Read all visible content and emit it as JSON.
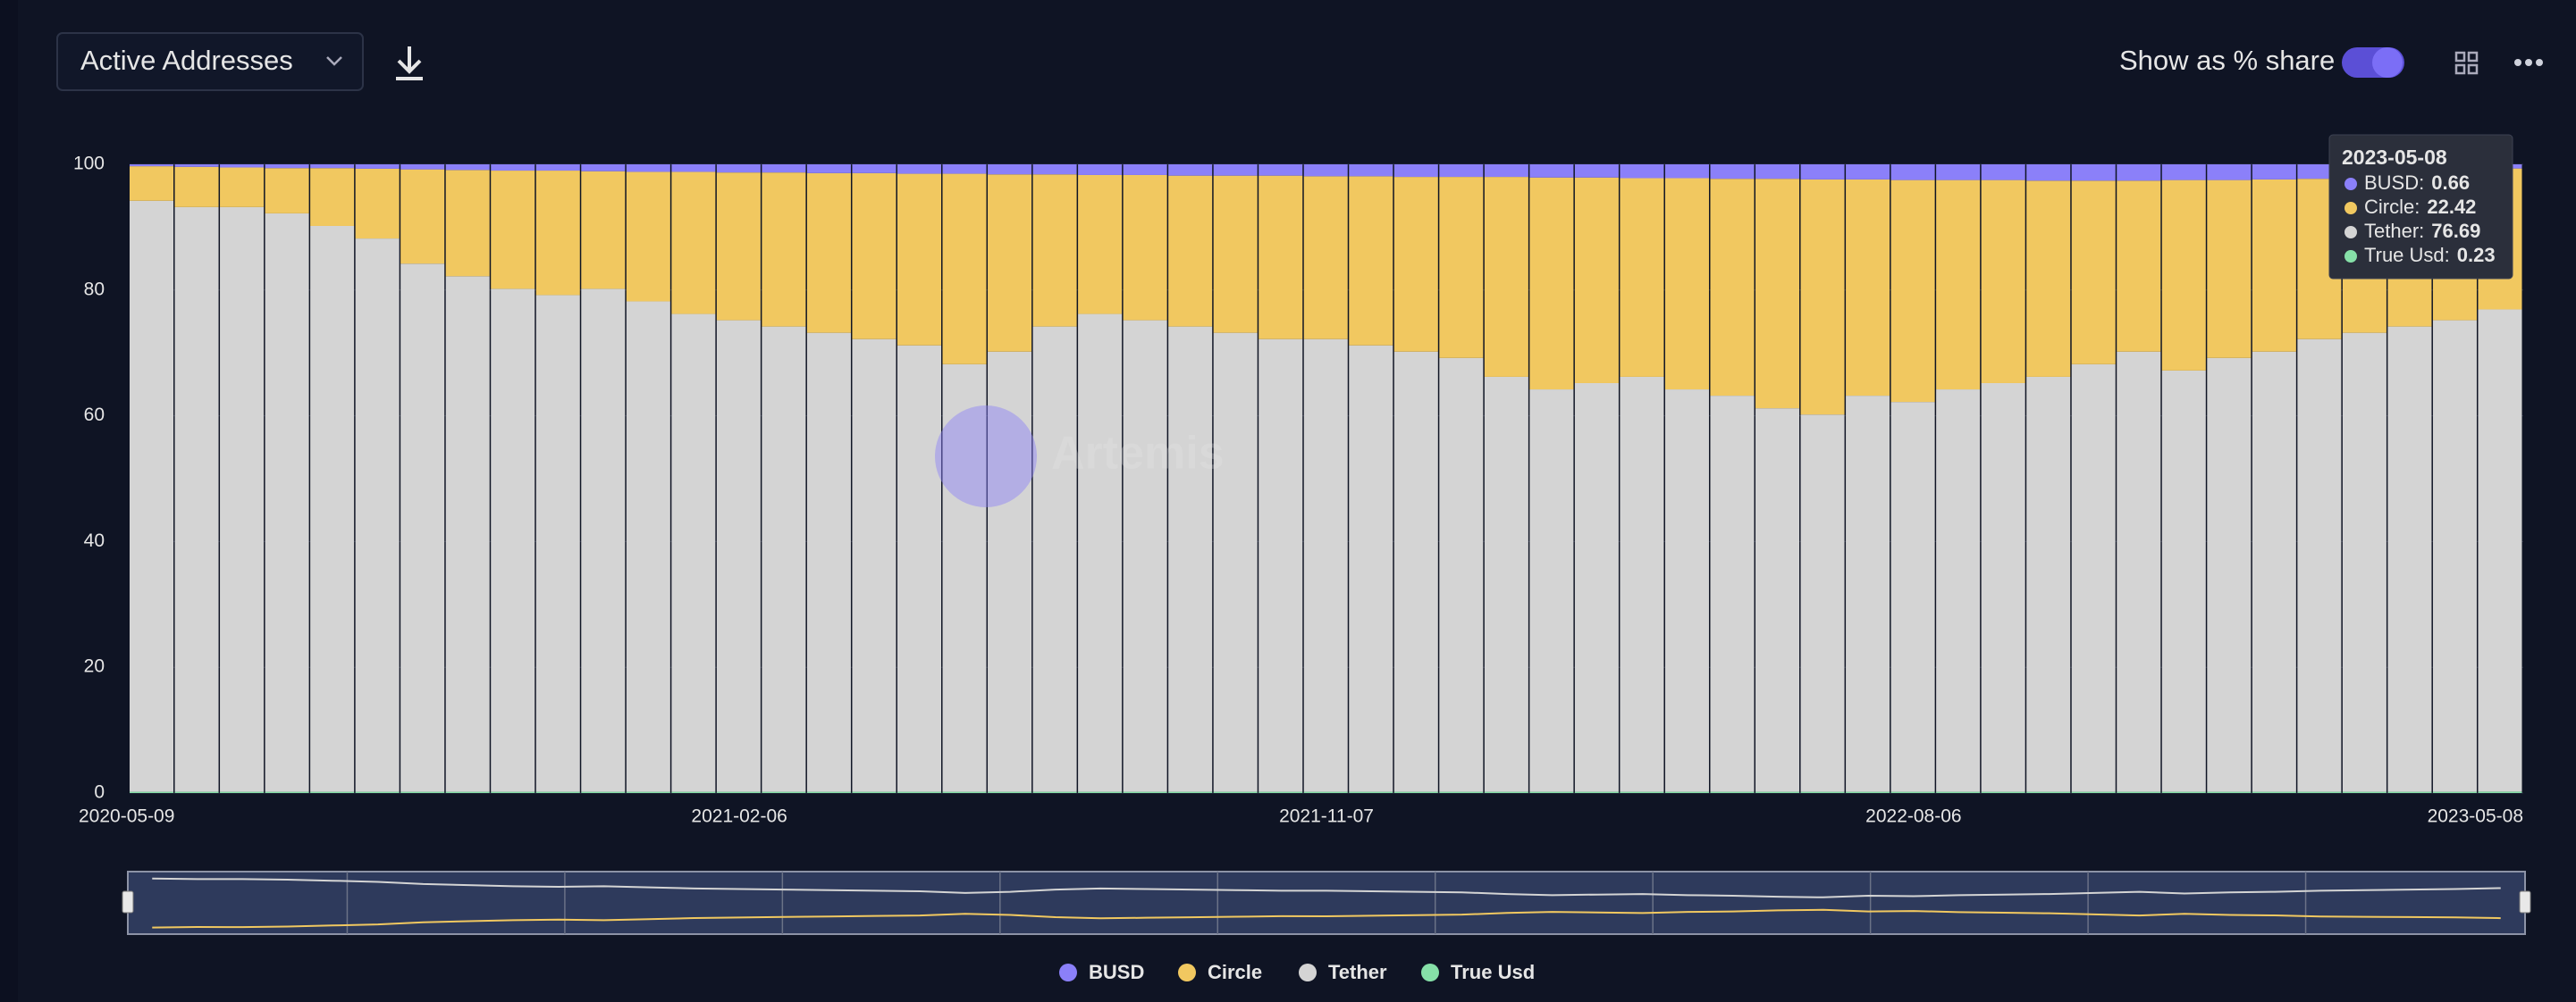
{
  "chart_data": {
    "type": "stacked_bar",
    "metric": "Active Addresses",
    "toggle_label": "Show as % share",
    "watermark": "Artemis",
    "tooltip_separator": ":",
    "categories": [
      "2020-05-09",
      null,
      null,
      null,
      null,
      null,
      null,
      null,
      null,
      null,
      null,
      null,
      null,
      "2021-02-06",
      null,
      null,
      null,
      null,
      null,
      null,
      null,
      null,
      null,
      null,
      null,
      null,
      "2021-11-07",
      null,
      null,
      null,
      null,
      null,
      null,
      null,
      null,
      null,
      null,
      null,
      null,
      "2022-08-06",
      null,
      null,
      null,
      null,
      null,
      null,
      null,
      null,
      null,
      null,
      null,
      null,
      "2023-05-08"
    ],
    "ylim": [
      0,
      100
    ],
    "yticks": [
      0,
      20,
      40,
      60,
      80,
      100
    ],
    "grid": true,
    "tooltip_index": 52,
    "series": [
      {
        "name": "BUSD",
        "color": "#8b80f9",
        "values": [
          0.3,
          0.4,
          0.5,
          0.6,
          0.6,
          0.7,
          0.8,
          0.9,
          1.0,
          1.0,
          1.1,
          1.2,
          1.2,
          1.3,
          1.3,
          1.4,
          1.4,
          1.5,
          1.5,
          1.6,
          1.6,
          1.7,
          1.7,
          1.8,
          1.8,
          1.8,
          1.9,
          1.9,
          2.0,
          2.0,
          2.0,
          2.1,
          2.1,
          2.2,
          2.2,
          2.3,
          2.3,
          2.4,
          2.4,
          2.5,
          2.5,
          2.5,
          2.6,
          2.6,
          2.6,
          2.5,
          2.5,
          2.4,
          2.3,
          2.0,
          1.5,
          1.0,
          0.66
        ]
      },
      {
        "name": "Circle",
        "color": "#f1c860",
        "values": [
          5.5,
          6.4,
          6.3,
          7.2,
          9.2,
          11.1,
          15.0,
          16.9,
          18.8,
          19.8,
          18.7,
          20.6,
          22.6,
          23.5,
          24.5,
          25.4,
          26.4,
          27.3,
          30.3,
          28.2,
          24.2,
          22.1,
          23.1,
          24.0,
          25.0,
          26.0,
          25.9,
          26.9,
          27.8,
          28.8,
          31.8,
          33.7,
          32.7,
          31.6,
          33.6,
          34.5,
          36.5,
          37.4,
          34.4,
          35.3,
          33.3,
          32.3,
          31.2,
          29.2,
          27.2,
          30.3,
          28.3,
          27.4,
          25.5,
          24.8,
          24.3,
          23.8,
          22.42
        ]
      },
      {
        "name": "Tether",
        "color": "#d4d4d4",
        "values": [
          94,
          93,
          93,
          92,
          90,
          88,
          84,
          82,
          80,
          79,
          80,
          78,
          76,
          75,
          74,
          73,
          72,
          71,
          68,
          70,
          74,
          76,
          75,
          74,
          73,
          72,
          72,
          71,
          70,
          69,
          66,
          64,
          65,
          66,
          64,
          63,
          61,
          60,
          63,
          62,
          64,
          65,
          66,
          68,
          70,
          67,
          69,
          70,
          72,
          73,
          74,
          75,
          76.69
        ]
      },
      {
        "name": "True Usd",
        "color": "#86e0a8",
        "values": [
          0.2,
          0.2,
          0.2,
          0.2,
          0.2,
          0.2,
          0.2,
          0.2,
          0.2,
          0.2,
          0.2,
          0.2,
          0.2,
          0.2,
          0.2,
          0.2,
          0.2,
          0.2,
          0.2,
          0.2,
          0.2,
          0.2,
          0.2,
          0.2,
          0.2,
          0.2,
          0.2,
          0.2,
          0.2,
          0.2,
          0.2,
          0.2,
          0.2,
          0.2,
          0.2,
          0.2,
          0.2,
          0.2,
          0.2,
          0.2,
          0.2,
          0.2,
          0.2,
          0.2,
          0.2,
          0.2,
          0.2,
          0.2,
          0.2,
          0.2,
          0.2,
          0.2,
          0.23
        ]
      }
    ]
  }
}
